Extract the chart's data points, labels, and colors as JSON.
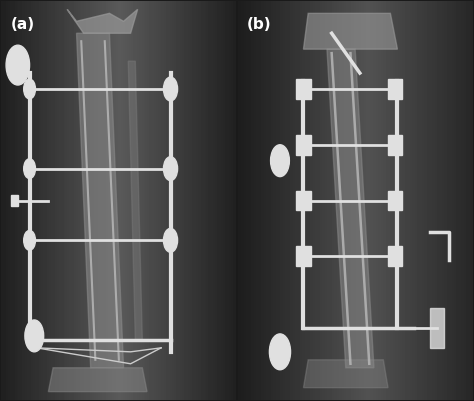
{
  "figure_width": 4.74,
  "figure_height": 4.01,
  "dpi": 100,
  "bg_color": "#1a1a1a",
  "panel_a_label": "(a)",
  "panel_b_label": "(b)",
  "label_color": "#ffffff",
  "label_fontsize": 11,
  "bone_color": "#aaaaaa",
  "fixator_color": "#e0e0e0",
  "xray_bg_a": "#555555",
  "xray_bg_b": "#444444"
}
